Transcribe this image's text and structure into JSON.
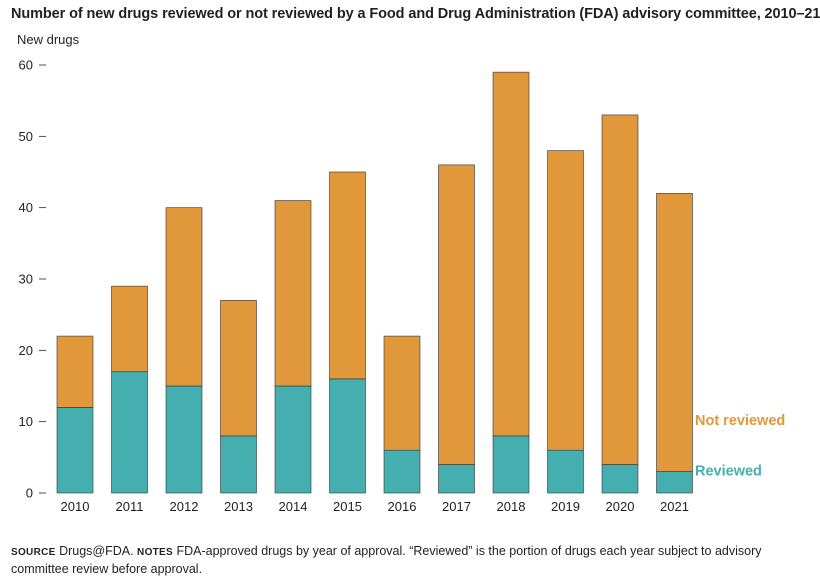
{
  "chart_data": {
    "type": "bar",
    "stacked": true,
    "title": "Number of new drugs reviewed or not reviewed by a Food and Drug Administration (FDA) advisory committee, 2010–21",
    "ylabel": "New drugs",
    "xlabel": "",
    "ylim": [
      0,
      60
    ],
    "yticks": [
      "0",
      "10",
      "20",
      "30",
      "40",
      "50",
      "60"
    ],
    "categories": [
      "2010",
      "2011",
      "2012",
      "2013",
      "2014",
      "2015",
      "2016",
      "2017",
      "2018",
      "2019",
      "2020",
      "2021"
    ],
    "series": [
      {
        "name": "Reviewed",
        "color": "#45aeae",
        "values": [
          12,
          17,
          15,
          8,
          15,
          16,
          6,
          4,
          8,
          6,
          4,
          3
        ]
      },
      {
        "name": "Not reviewed",
        "color": "#e0983b",
        "values": [
          10,
          12,
          25,
          19,
          26,
          29,
          16,
          42,
          51,
          42,
          49,
          39
        ]
      }
    ],
    "legend": "right, inline labels next to last bar",
    "grid": false
  },
  "footer": {
    "source_label": "SOURCE",
    "source_text": " Drugs@FDA. ",
    "notes_label": "NOTES",
    "notes_text": " FDA-approved drugs by year of approval. “Reviewed” is the portion of drugs each year subject to advisory committee review before approval."
  }
}
